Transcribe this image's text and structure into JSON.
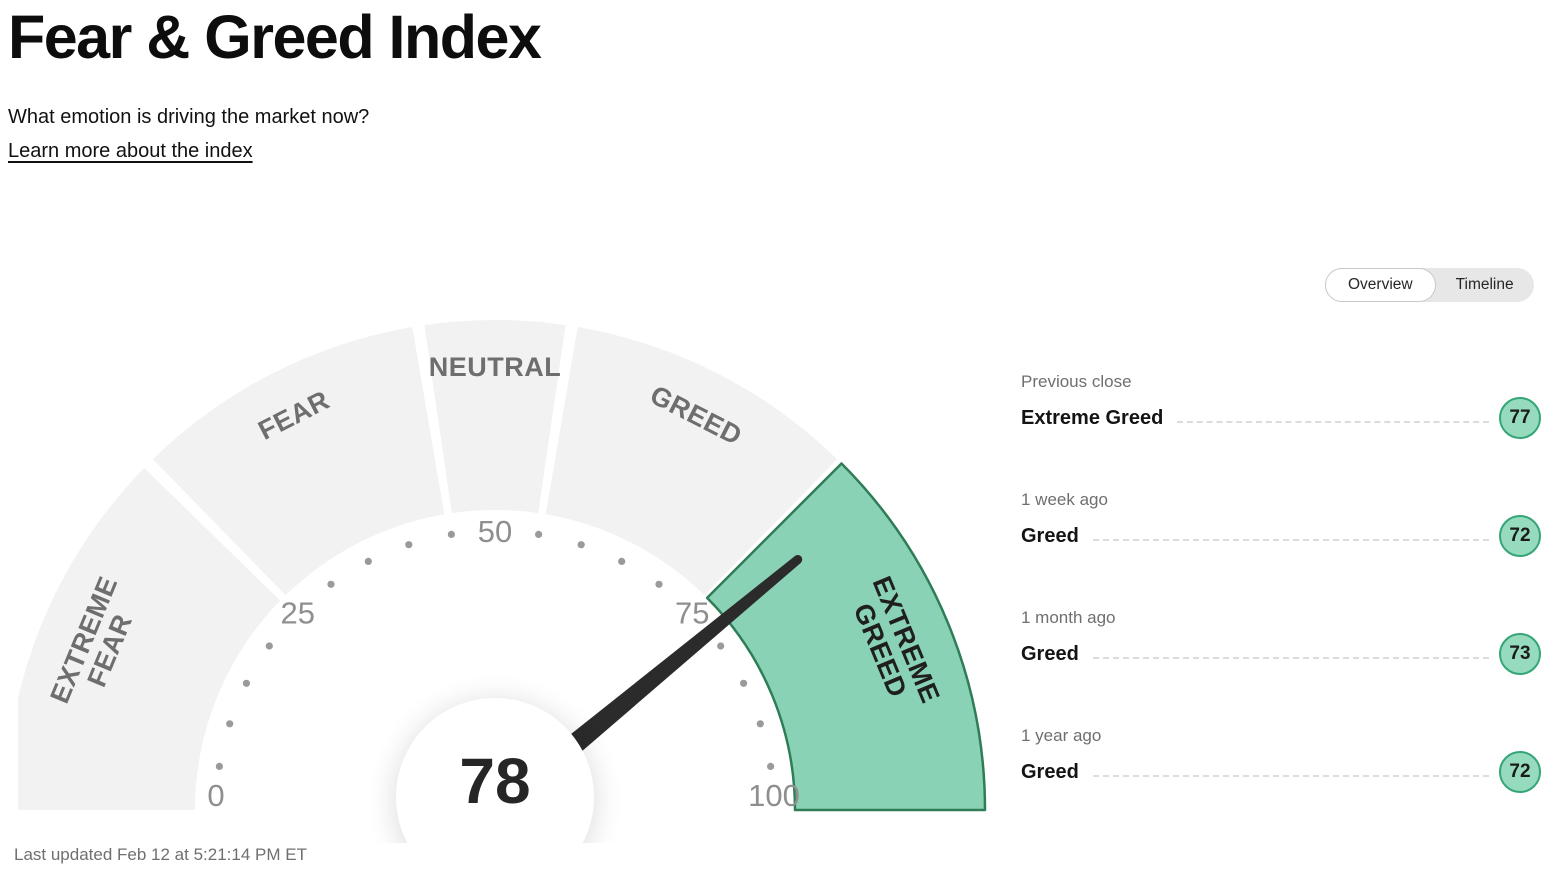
{
  "page": {
    "title": "Fear & Greed Index",
    "subtitle": "What emotion is driving the market now?",
    "learn_more": "Learn more about the index",
    "last_updated": "Last updated Feb 12 at 5:21:14 PM ET"
  },
  "tabs": [
    {
      "label": "Overview",
      "active": true
    },
    {
      "label": "Timeline",
      "active": false
    }
  ],
  "chart_data": {
    "type": "gauge",
    "title": "Fear & Greed Index",
    "score": 78,
    "min": 0,
    "max": 100,
    "tick_labels": [
      0,
      25,
      50,
      75,
      100
    ],
    "minor_tick_step": 5,
    "segments": [
      {
        "label": "EXTREME FEAR",
        "range": [
          0,
          25
        ],
        "active": false
      },
      {
        "label": "FEAR",
        "range": [
          25,
          45
        ],
        "active": false
      },
      {
        "label": "NEUTRAL",
        "range": [
          45,
          55
        ],
        "active": false
      },
      {
        "label": "GREED",
        "range": [
          55,
          75
        ],
        "active": false
      },
      {
        "label": "EXTREME GREED",
        "range": [
          75,
          100
        ],
        "active": true
      }
    ],
    "colors": {
      "active_fill": "#8ad2b6",
      "active_stroke": "#2f7d56",
      "inactive_fill": "#f2f2f2",
      "needle": "#2b2b2b",
      "tick": "#9a9a9a",
      "tick_label": "#8f8f8f"
    }
  },
  "history": [
    {
      "period": "Previous close",
      "label": "Extreme Greed",
      "value": 77
    },
    {
      "period": "1 week ago",
      "label": "Greed",
      "value": 72
    },
    {
      "period": "1 month ago",
      "label": "Greed",
      "value": 73
    },
    {
      "period": "1 year ago",
      "label": "Greed",
      "value": 72
    }
  ],
  "colors": {
    "badge_fill": "#96dbbe",
    "badge_stroke": "#35a578"
  }
}
